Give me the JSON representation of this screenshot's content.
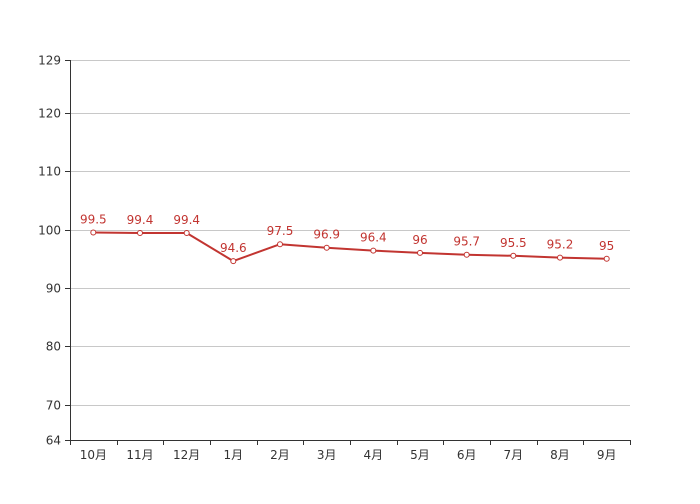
{
  "chart_data": {
    "type": "line",
    "title": "",
    "xlabel": "",
    "ylabel": "",
    "categories": [
      "10月",
      "11月",
      "12月",
      "1月",
      "2月",
      "3月",
      "4月",
      "5月",
      "6月",
      "7月",
      "8月",
      "9月"
    ],
    "series": [
      {
        "values": [
          99.5,
          99.4,
          99.4,
          94.6,
          97.5,
          96.9,
          96.4,
          96,
          95.7,
          95.5,
          95.2,
          95
        ],
        "color": "#c23531",
        "marker": "circle-hollow",
        "data_labels": true
      }
    ],
    "ylim": [
      64,
      129
    ],
    "yticks": [
      64,
      70,
      80,
      90,
      100,
      110,
      120,
      129
    ],
    "grid": true,
    "legend": "none"
  }
}
